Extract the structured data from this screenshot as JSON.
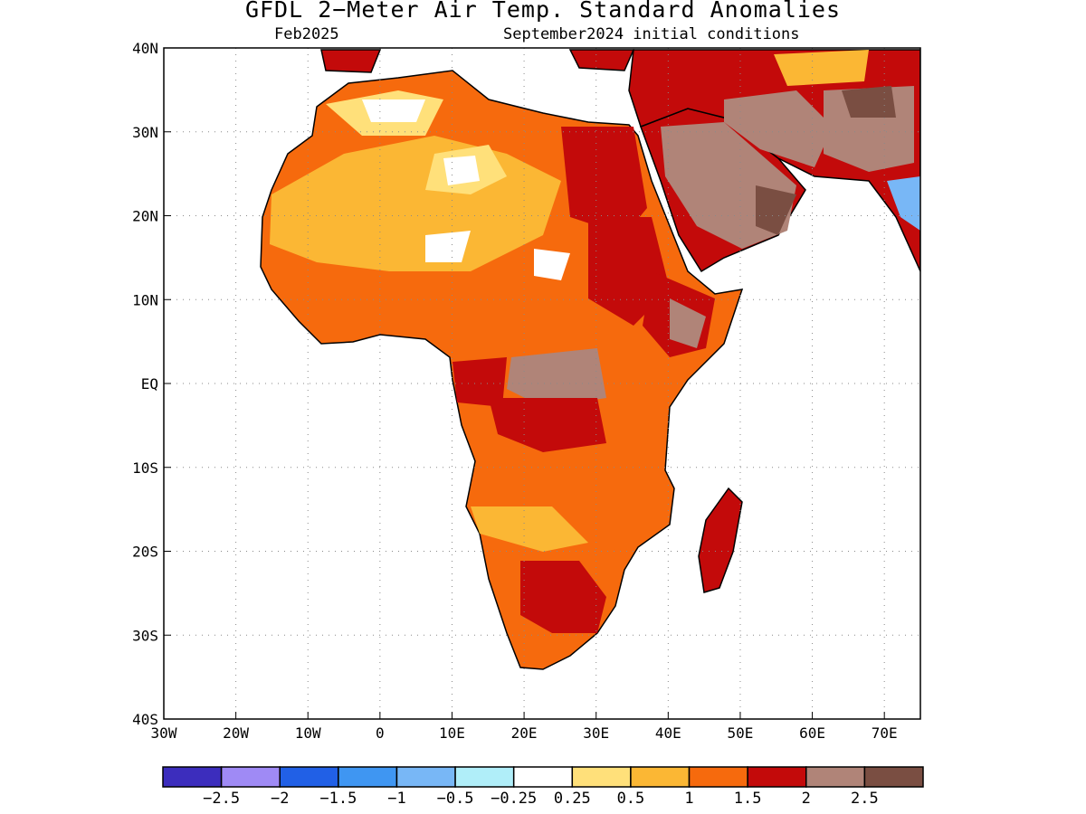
{
  "title": "GFDL 2−Meter Air Temp. Standard Anomalies",
  "subtitle_left": "Feb2025",
  "subtitle_right": "September2024 initial conditions",
  "map": {
    "lon_range": [
      -30,
      75
    ],
    "lat_range": [
      -40,
      40
    ],
    "lon_ticks": [
      {
        "value": -30,
        "label": "30W"
      },
      {
        "value": -20,
        "label": "20W"
      },
      {
        "value": -10,
        "label": "10W"
      },
      {
        "value": 0,
        "label": "0"
      },
      {
        "value": 10,
        "label": "10E"
      },
      {
        "value": 20,
        "label": "20E"
      },
      {
        "value": 30,
        "label": "30E"
      },
      {
        "value": 40,
        "label": "40E"
      },
      {
        "value": 50,
        "label": "50E"
      },
      {
        "value": 60,
        "label": "60E"
      },
      {
        "value": 70,
        "label": "70E"
      }
    ],
    "lat_ticks": [
      {
        "value": 40,
        "label": "40N"
      },
      {
        "value": 30,
        "label": "30N"
      },
      {
        "value": 20,
        "label": "20N"
      },
      {
        "value": 10,
        "label": "10N"
      },
      {
        "value": 0,
        "label": "EQ"
      },
      {
        "value": -10,
        "label": "10S"
      },
      {
        "value": -20,
        "label": "20S"
      },
      {
        "value": -30,
        "label": "30S"
      },
      {
        "value": -40,
        "label": "40S"
      }
    ],
    "grid": "dotted",
    "land_background": "#f08a34"
  },
  "colorbar": {
    "colors": [
      "#3c2dbd",
      "#9f8af5",
      "#2160e6",
      "#3f96f2",
      "#78b7f6",
      "#b0eef9",
      "#ffffff",
      "#ffe07a",
      "#fbb734",
      "#f66a0d",
      "#c30a0a",
      "#b08478",
      "#7a4e42"
    ],
    "labels": [
      "−2.5",
      "−2",
      "−1.5",
      "−1",
      "−0.5",
      "−0.25",
      "0.25",
      "0.5",
      "1",
      "1.5",
      "2",
      "2.5"
    ]
  }
}
